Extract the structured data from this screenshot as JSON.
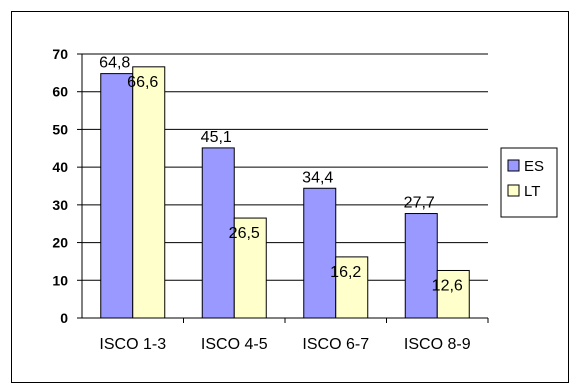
{
  "header": {
    "title_fragment": ""
  },
  "chart_data": {
    "type": "bar",
    "title": "",
    "xlabel": "",
    "ylabel": "",
    "categories": [
      "ISCO 1-3",
      "ISCO 4-5",
      "ISCO 6-7",
      "ISCO 8-9"
    ],
    "series": [
      {
        "name": "ES",
        "values": [
          64.8,
          45.1,
          34.4,
          27.7
        ],
        "labels": [
          "64,8",
          "45,1",
          "34,4",
          "27,7"
        ],
        "color": "#9999ff"
      },
      {
        "name": "LT",
        "values": [
          66.6,
          26.5,
          16.2,
          12.6
        ],
        "labels": [
          "66,6",
          "26,5",
          "16,2",
          "12,6"
        ],
        "color": "#ffffcc"
      }
    ],
    "ylim": [
      0,
      70
    ],
    "yticks": [
      0,
      10,
      20,
      30,
      40,
      50,
      60,
      70
    ],
    "grid": true,
    "legend": "right"
  }
}
